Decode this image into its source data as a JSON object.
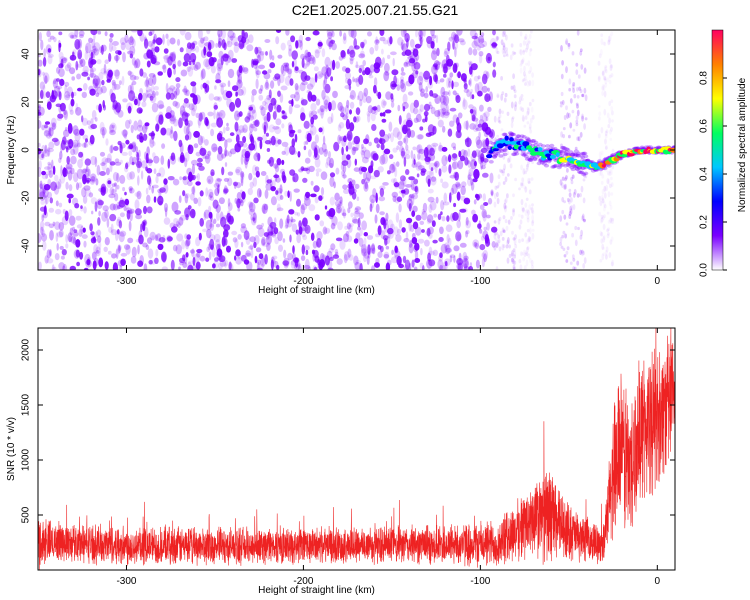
{
  "title": "C2E1.2025.007.21.55.G21",
  "chart_data": [
    {
      "type": "heatmap",
      "xlabel": "Height of straight line (km)",
      "ylabel": "Frequency (Hz)",
      "xlim": [
        -350,
        10
      ],
      "ylim": [
        -50,
        50
      ],
      "x_ticks": [
        -300,
        -200,
        -100,
        0
      ],
      "y_ticks": [
        -40,
        -20,
        0,
        20,
        40
      ],
      "colorbar": {
        "label": "Normalized spectral amplitude",
        "range": [
          0,
          1
        ],
        "ticks": [
          "0.0",
          "0.2",
          "0.4",
          "0.6",
          "0.8"
        ],
        "colormap": [
          "#ffffff",
          "#7a00ff",
          "#0000ff",
          "#00c8ff",
          "#00ff60",
          "#ffff00",
          "#ff8000",
          "#ff0060"
        ]
      },
      "signal_track": {
        "x": [
          -95,
          -85,
          -75,
          -65,
          -55,
          -45,
          -35,
          -30,
          -25,
          -20,
          -10,
          0,
          10
        ],
        "y": [
          -1,
          3,
          1,
          -2,
          -3,
          -5,
          -7,
          -6,
          -4,
          -2,
          0,
          0,
          0
        ]
      },
      "noise_region": {
        "x_start": -350,
        "x_end": -95,
        "color": "#7a00ff"
      },
      "grid": false
    },
    {
      "type": "line",
      "xlabel": "Height of straight line (km)",
      "ylabel": "SNR (10 * v/v)",
      "xlim": [
        -350,
        10
      ],
      "ylim": [
        0,
        2200
      ],
      "x_ticks": [
        -300,
        -200,
        -100,
        0
      ],
      "y_ticks": [
        500,
        1000,
        1500,
        2000
      ],
      "color": "#ee2222",
      "envelope": {
        "x": [
          -350,
          -340,
          -300,
          -200,
          -120,
          -90,
          -80,
          -70,
          -60,
          -55,
          -45,
          -35,
          -30,
          -28,
          -25,
          -20,
          -15,
          -10,
          -5,
          0,
          5,
          10
        ],
        "base": [
          250,
          260,
          220,
          220,
          230,
          240,
          350,
          450,
          500,
          400,
          300,
          250,
          250,
          500,
          900,
          1100,
          900,
          1300,
          1300,
          1400,
          1500,
          1550
        ],
        "amplitude": [
          280,
          200,
          200,
          180,
          200,
          250,
          300,
          400,
          500,
          350,
          250,
          200,
          200,
          400,
          700,
          800,
          800,
          700,
          800,
          700,
          700,
          600
        ]
      },
      "grid": false
    }
  ]
}
